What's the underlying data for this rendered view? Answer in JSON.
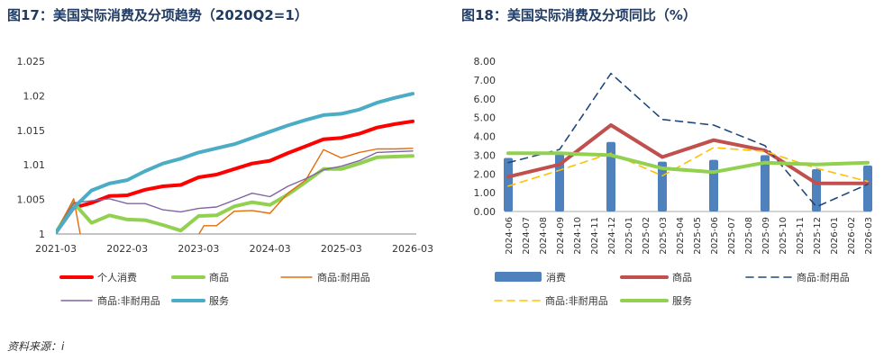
{
  "titles": {
    "left": "图17：美国实际消费及分项趋势（2020Q2=1）",
    "right": "图18：美国实际消费及分项同比（%）"
  },
  "source": "资料来源：i",
  "colors": {
    "consumption": "#ff0000",
    "goods": "#92d050",
    "durable": "#e46c0a",
    "nondurable": "#8064a2",
    "services": "#4bacc6",
    "bar": "#4f81bd",
    "goods_yoy": "#c0504d",
    "durable_yoy": "#1f497d",
    "nondurable_yoy": "#ffc000"
  },
  "chart_data": [
    {
      "type": "line",
      "title": "图17：美国实际消费及分项趋势（2020Q2=1）",
      "xlim": [
        0,
        20.2
      ],
      "ylim": [
        1.0,
        1.025
      ],
      "yticks": [
        1,
        1.005,
        1.01,
        1.015,
        1.02,
        1.025
      ],
      "ytick_labels": [
        "1",
        "1.005",
        "1.01",
        "1.015",
        "1.02",
        "1.025"
      ],
      "xticks": [
        0,
        4,
        8,
        12,
        16,
        20
      ],
      "xtick_labels": [
        "2021-03",
        "2022-03",
        "2023-03",
        "2024-03",
        "2025-03",
        "2026-03"
      ],
      "grid": false,
      "legend_position": "bottom",
      "series": [
        {
          "name": "个人消费",
          "color_key": "consumption",
          "width": 4,
          "x": [
            0,
            1,
            2,
            3,
            4,
            5,
            6,
            7,
            8,
            9,
            10,
            11,
            12,
            13,
            14,
            15,
            16,
            17,
            18,
            19,
            20
          ],
          "y": [
            1.0002,
            1.0038,
            1.0045,
            1.0055,
            1.0056,
            1.0064,
            1.0069,
            1.0071,
            1.0082,
            1.0086,
            1.0094,
            1.0102,
            1.0106,
            1.0117,
            1.0127,
            1.0137,
            1.0139,
            1.0145,
            1.0154,
            1.0159,
            1.0163
          ]
        },
        {
          "name": "商品",
          "color_key": "goods",
          "width": 4,
          "x": [
            0,
            1,
            2,
            3,
            4,
            5,
            6,
            7,
            8,
            9,
            10,
            11,
            12,
            13,
            14,
            15,
            16,
            17,
            18,
            19,
            20
          ],
          "y": [
            1.0002,
            1.0045,
            1.0016,
            1.0027,
            1.0021,
            1.002,
            1.0013,
            1.0005,
            1.0026,
            1.0027,
            1.004,
            1.0046,
            1.0042,
            1.0057,
            1.0075,
            1.0094,
            1.0094,
            1.0102,
            1.0111,
            1.0112,
            1.0113
          ]
        },
        {
          "name": "商品:耐用品",
          "color_key": "durable",
          "width": 1.4,
          "segments": [
            {
              "x": [
                0,
                1,
                1.4
              ],
              "y": [
                1.0002,
                1.0051,
                0.9995
              ]
            },
            {
              "x": [
                7.9,
                8.3,
                9,
                10,
                11,
                12,
                13,
                14,
                15,
                16,
                17,
                18,
                19,
                20
              ],
              "y": [
                0.9995,
                1.0012,
                1.0012,
                1.0033,
                1.0034,
                1.003,
                1.0059,
                1.0078,
                1.0122,
                1.011,
                1.0118,
                1.0123,
                1.0123,
                1.0124
              ]
            }
          ]
        },
        {
          "name": "商品:非耐用品",
          "color_key": "nondurable",
          "width": 1.4,
          "x": [
            0,
            1,
            2,
            3,
            4,
            5,
            6,
            7,
            8,
            9,
            10,
            11,
            12,
            13,
            14,
            15,
            16,
            17,
            18,
            19,
            20
          ],
          "y": [
            1.0002,
            1.0045,
            1.0048,
            1.0051,
            1.0044,
            1.0044,
            1.0035,
            1.0032,
            1.0037,
            1.0039,
            1.0049,
            1.0059,
            1.0054,
            1.0069,
            1.008,
            1.0093,
            1.0098,
            1.0106,
            1.0118,
            1.0119,
            1.012
          ]
        },
        {
          "name": "服务",
          "color_key": "services",
          "width": 4,
          "x": [
            0,
            1,
            2,
            3,
            4,
            5,
            6,
            7,
            8,
            9,
            10,
            11,
            12,
            13,
            14,
            15,
            16,
            17,
            18,
            19,
            20
          ],
          "y": [
            1.0002,
            1.0038,
            1.0063,
            1.0073,
            1.0078,
            1.0091,
            1.0102,
            1.0109,
            1.0118,
            1.0124,
            1.013,
            1.0139,
            1.0148,
            1.0157,
            1.0165,
            1.0172,
            1.0174,
            1.018,
            1.019,
            1.0197,
            1.0203
          ]
        }
      ]
    },
    {
      "type": "bar+line",
      "title": "图18：美国实际消费及分项同比（%）",
      "ylim": [
        0,
        8
      ],
      "yticks": [
        0,
        1,
        2,
        3,
        4,
        5,
        6,
        7,
        8
      ],
      "ytick_labels": [
        "0.00",
        "1.00",
        "2.00",
        "3.00",
        "4.00",
        "5.00",
        "6.00",
        "7.00",
        "8.00"
      ],
      "categories": [
        "2024-06",
        "2024-07",
        "2024-08",
        "2024-09",
        "2024-10",
        "2024-11",
        "2024-12",
        "2025-01",
        "2025-02",
        "2025-03",
        "2025-04",
        "2025-05",
        "2025-06",
        "2025-07",
        "2025-08",
        "2025-09",
        "2025-10",
        "2025-11",
        "2025-12",
        "2026-01",
        "2026-02",
        "2026-03"
      ],
      "grid": false,
      "legend_position": "bottom",
      "bars": {
        "name": "消费",
        "color_key": "bar",
        "x": [
          "2024-06",
          "2024-09",
          "2024-12",
          "2025-03",
          "2025-06",
          "2025-09",
          "2025-12",
          "2026-03"
        ],
        "values": [
          2.85,
          3.05,
          3.7,
          2.65,
          2.75,
          3.0,
          2.25,
          2.45
        ]
      },
      "series": [
        {
          "name": "商品",
          "color_key": "goods_yoy",
          "width": 4,
          "dash": "",
          "x": [
            "2024-06",
            "2024-09",
            "2024-12",
            "2025-03",
            "2025-06",
            "2025-09",
            "2025-12",
            "2026-03"
          ],
          "y": [
            1.85,
            2.5,
            4.6,
            2.9,
            3.8,
            3.25,
            1.5,
            1.5
          ]
        },
        {
          "name": "商品:耐用品",
          "color_key": "durable_yoy",
          "width": 1.6,
          "dash": "8,6",
          "x": [
            "2024-06",
            "2024-09",
            "2024-12",
            "2025-03",
            "2025-06",
            "2025-09",
            "2025-12",
            "2026-03"
          ],
          "y": [
            2.6,
            3.3,
            7.35,
            4.9,
            4.6,
            3.5,
            0.25,
            1.45
          ]
        },
        {
          "name": "商品:非耐用品",
          "color_key": "nondurable_yoy",
          "width": 1.6,
          "dash": "8,6",
          "x": [
            "2024-06",
            "2024-09",
            "2024-12",
            "2025-03",
            "2025-06",
            "2025-09",
            "2025-12",
            "2026-03"
          ],
          "y": [
            1.35,
            2.2,
            3.1,
            1.9,
            3.4,
            3.2,
            2.3,
            1.6
          ]
        },
        {
          "name": "服务",
          "color_key": "services_yoy",
          "width": 4,
          "dash": "",
          "x": [
            "2024-06",
            "2024-09",
            "2024-12",
            "2025-03",
            "2025-06",
            "2025-09",
            "2025-12",
            "2026-03"
          ],
          "y": [
            3.1,
            3.1,
            3.0,
            2.3,
            2.1,
            2.6,
            2.5,
            2.6
          ]
        }
      ]
    }
  ]
}
